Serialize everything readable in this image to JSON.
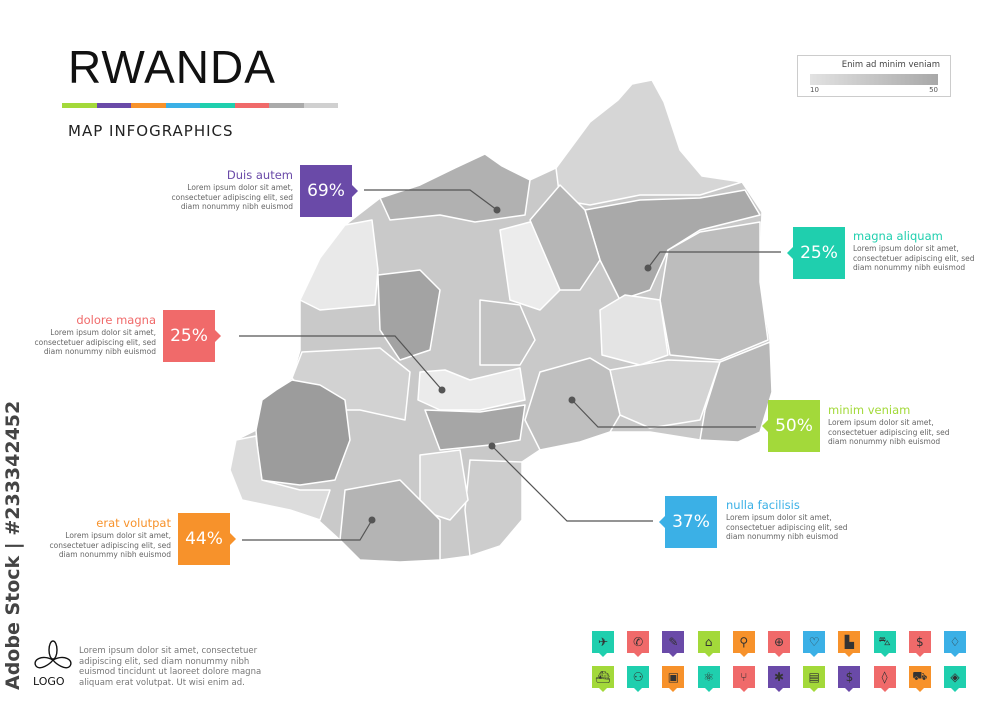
{
  "header": {
    "title": "RWANDA",
    "subtitle": "MAP INFOGRAPHICS",
    "color_bar": [
      "#a3d93a",
      "#6a4aa8",
      "#f7922b",
      "#3bb0e6",
      "#1fcfae",
      "#f06a6a",
      "#aaaaaa",
      "#d0d0d0"
    ]
  },
  "legend": {
    "title": "Enim ad minim veniam",
    "min": "10",
    "max": "50",
    "gradient": [
      "#e2e2e2",
      "#a8a8a8"
    ]
  },
  "callouts": [
    {
      "heading": "Duis autem",
      "value": "69%",
      "color": "#6a4aa8",
      "text": "Lorem ipsum dolor sit amet, consectetuer adipiscing elit, sed diam nonummy nibh euismod"
    },
    {
      "heading": "magna aliquam",
      "value": "25%",
      "color": "#1fcfae",
      "text": "Lorem ipsum dolor sit amet, consectetuer adipiscing elit, sed diam nonummy nibh euismod"
    },
    {
      "heading": "dolore magna",
      "value": "25%",
      "color": "#f06a6a",
      "text": "Lorem ipsum dolor sit amet, consectetuer adipiscing elit, sed diam nonummy nibh euismod"
    },
    {
      "heading": "minim veniam",
      "value": "50%",
      "color": "#a3d93a",
      "text": "Lorem ipsum dolor sit amet, consectetuer adipiscing elit, sed diam nonummy nibh euismod"
    },
    {
      "heading": "nulla facilisis",
      "value": "37%",
      "color": "#3bb0e6",
      "text": "Lorem ipsum dolor sit amet, consectetuer adipiscing elit, sed diam nonummy nibh euismod"
    },
    {
      "heading": "erat volutpat",
      "value": "44%",
      "color": "#f7922b",
      "text": "Lorem ipsum dolor sit amet, consectetuer adipiscing elit, sed diam nonummy nibh euismod"
    }
  ],
  "footer": {
    "logo": "LOGO",
    "text": "Lorem ipsum dolor sit amet, consectetuer adipiscing elit, sed diam nonummy nibh euismod tincidunt ut laoreet dolore magna aliquam erat volutpat. Ut wisi enim ad."
  },
  "watermark": "Adobe Stock | #233342452",
  "icons": [
    {
      "name": "airplane",
      "color": "#1fcfae",
      "glyph": "✈"
    },
    {
      "name": "phone",
      "color": "#f06a6a",
      "glyph": "✆"
    },
    {
      "name": "pin",
      "color": "#6a4aa8",
      "glyph": "✎"
    },
    {
      "name": "bank",
      "color": "#a3d93a",
      "glyph": "⌂"
    },
    {
      "name": "location",
      "color": "#f7922b",
      "glyph": "⚲"
    },
    {
      "name": "globe",
      "color": "#f06a6a",
      "glyph": "⊕"
    },
    {
      "name": "heart",
      "color": "#3bb0e6",
      "glyph": "♡"
    },
    {
      "name": "factory",
      "color": "#f7922b",
      "glyph": "▙"
    },
    {
      "name": "car",
      "color": "#1fcfae",
      "glyph": "⛍"
    },
    {
      "name": "dollar-coin",
      "color": "#f06a6a",
      "glyph": "$"
    },
    {
      "name": "shopping-bag",
      "color": "#3bb0e6",
      "glyph": "♢"
    },
    {
      "name": "ship",
      "color": "#a3d93a",
      "glyph": "⛴"
    },
    {
      "name": "motorcycle",
      "color": "#1fcfae",
      "glyph": "⚇"
    },
    {
      "name": "bus",
      "color": "#f7922b",
      "glyph": "▣"
    },
    {
      "name": "atom",
      "color": "#1fcfae",
      "glyph": "⚛"
    },
    {
      "name": "restaurant",
      "color": "#f06a6a",
      "glyph": "⑂"
    },
    {
      "name": "medical",
      "color": "#6a4aa8",
      "glyph": "✱"
    },
    {
      "name": "shop",
      "color": "#a3d93a",
      "glyph": "▤"
    },
    {
      "name": "money-exchange",
      "color": "#6a4aa8",
      "glyph": "$"
    },
    {
      "name": "drop",
      "color": "#f06a6a",
      "glyph": "◊"
    },
    {
      "name": "truck",
      "color": "#f7922b",
      "glyph": "⛟"
    },
    {
      "name": "map",
      "color": "#1fcfae",
      "glyph": "◈"
    }
  ]
}
